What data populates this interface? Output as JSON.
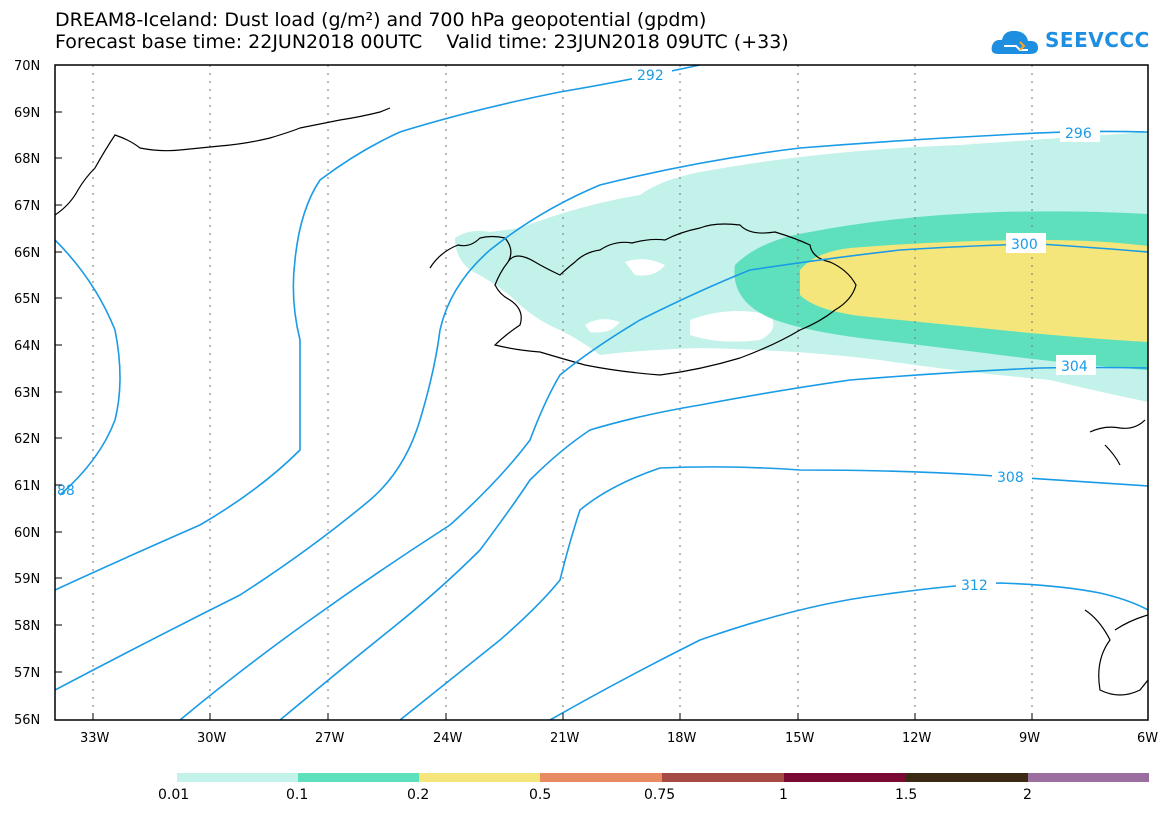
{
  "header": {
    "title": "DREAM8-Iceland: Dust load (g/m²) and 700 hPa geopotential (gpdm)",
    "subtitle": "Forecast base time: 22JUN2018 00UTC    Valid time: 23JUN2018 09UTC (+33)"
  },
  "logo": {
    "text": "SEEVCCC",
    "color": "#1e8fe0"
  },
  "map": {
    "region": "Iceland",
    "lat_range": [
      56,
      70
    ],
    "lon_range": [
      -34.5,
      -6
    ],
    "lat_labels": [
      "70N",
      "69N",
      "68N",
      "67N",
      "66N",
      "65N",
      "64N",
      "63N",
      "62N",
      "61N",
      "60N",
      "59N",
      "58N",
      "57N",
      "56N"
    ],
    "lon_labels": [
      "33W",
      "30W",
      "27W",
      "24W",
      "21W",
      "18W",
      "15W",
      "12W",
      "9W",
      "6W"
    ],
    "contour_labels": [
      "292",
      "296",
      "300",
      "304",
      "308",
      "312",
      "88"
    ],
    "contour_color": "#1a9be6"
  },
  "colorbar": {
    "labels": [
      "0.01",
      "0.1",
      "0.2",
      "0.5",
      "0.75",
      "1",
      "1.5",
      "2"
    ],
    "colors": [
      "#c2f2ea",
      "#5fe0bd",
      "#f5e67b",
      "#e88a62",
      "#a54a44",
      "#7a0a33",
      "#3a2a14",
      "#9a6fa0"
    ]
  },
  "dust_colors": {
    "low": "#c2f2ea",
    "mid": "#5fe0bd",
    "high": "#f5e67b"
  }
}
